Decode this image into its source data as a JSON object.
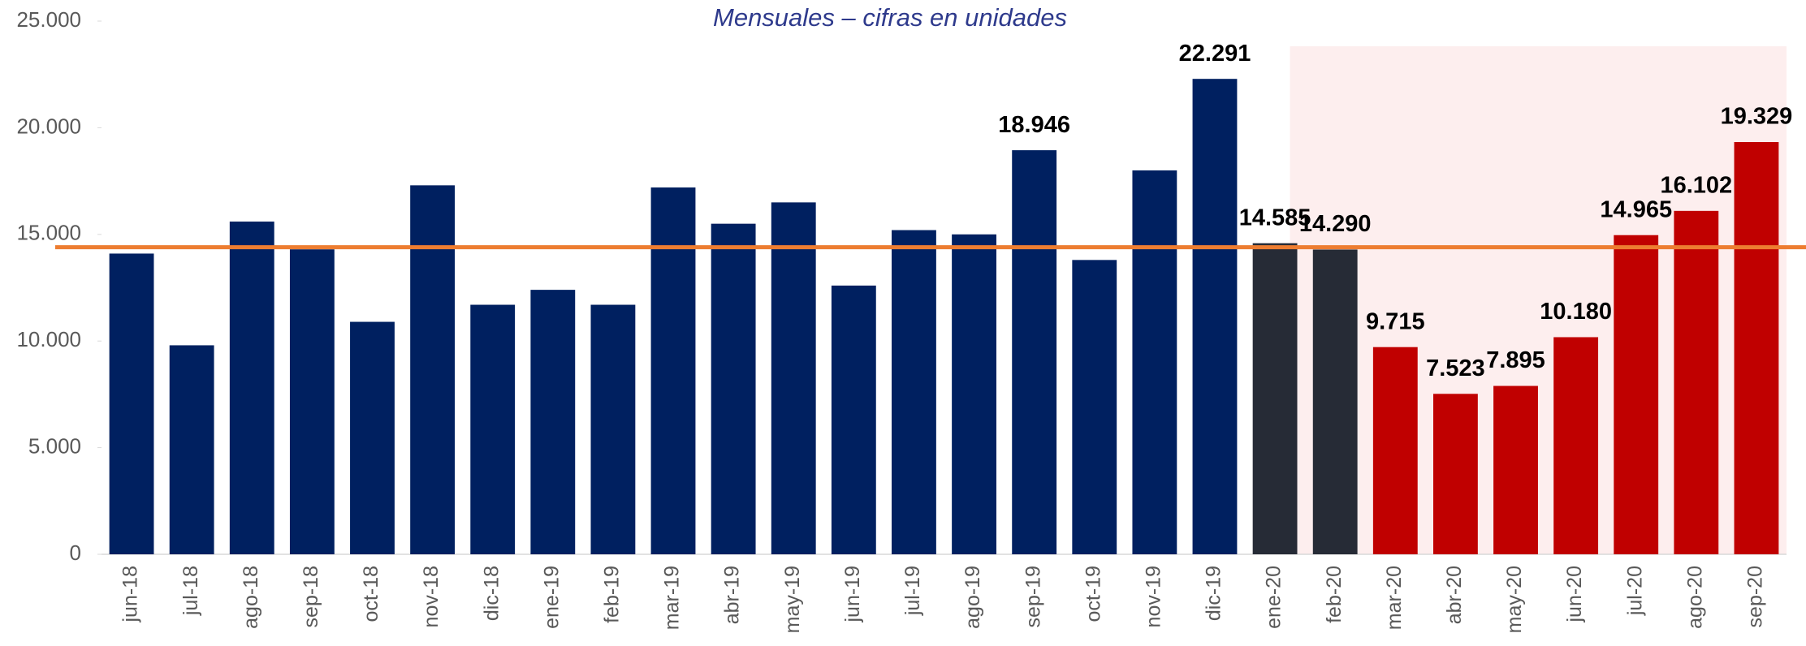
{
  "chart_data": {
    "type": "bar",
    "title": "Mensuales – cifras en unidades",
    "categories": [
      "jun-18",
      "jul-18",
      "ago-18",
      "sep-18",
      "oct-18",
      "nov-18",
      "dic-18",
      "ene-19",
      "feb-19",
      "mar-19",
      "abr-19",
      "may-19",
      "jun-19",
      "jul-19",
      "ago-19",
      "sep-19",
      "oct-19",
      "nov-19",
      "dic-19",
      "ene-20",
      "feb-20",
      "mar-20",
      "abr-20",
      "may-20",
      "jun-20",
      "jul-20",
      "ago-20",
      "sep-20"
    ],
    "values": [
      14100,
      9800,
      15600,
      14300,
      10900,
      17300,
      11700,
      12400,
      11700,
      17200,
      15500,
      16500,
      12600,
      15200,
      15000,
      18946,
      13800,
      18000,
      22291,
      14585,
      14290,
      9715,
      7523,
      7895,
      10180,
      14965,
      16102,
      19329
    ],
    "value_labels": [
      null,
      null,
      null,
      null,
      null,
      null,
      null,
      null,
      null,
      null,
      null,
      null,
      null,
      null,
      null,
      "18.946",
      null,
      null,
      "22.291",
      "14.585",
      "14.290",
      "9.715",
      "7.523",
      "7.895",
      "10.180",
      "14.965",
      "16.102",
      "19.329"
    ],
    "colors": [
      "#002060",
      "#002060",
      "#002060",
      "#002060",
      "#002060",
      "#002060",
      "#002060",
      "#002060",
      "#002060",
      "#002060",
      "#002060",
      "#002060",
      "#002060",
      "#002060",
      "#002060",
      "#002060",
      "#002060",
      "#002060",
      "#002060",
      "#262b36",
      "#262b36",
      "#c00000",
      "#c00000",
      "#c00000",
      "#c00000",
      "#c00000",
      "#c00000",
      "#c00000"
    ],
    "reference_line": 14400,
    "reference_color": "#ed7d31",
    "ylim": [
      0,
      25000
    ],
    "yticks": [
      0,
      {
        "value": 5000,
        "label": "5.000"
      },
      {
        "value": 10000,
        "label": "10.000"
      },
      {
        "value": 15000,
        "label": "15.000"
      },
      {
        "value": 20000,
        "label": "20.000"
      },
      {
        "value": 25000,
        "label": "25.000"
      }
    ],
    "grid": false
  }
}
